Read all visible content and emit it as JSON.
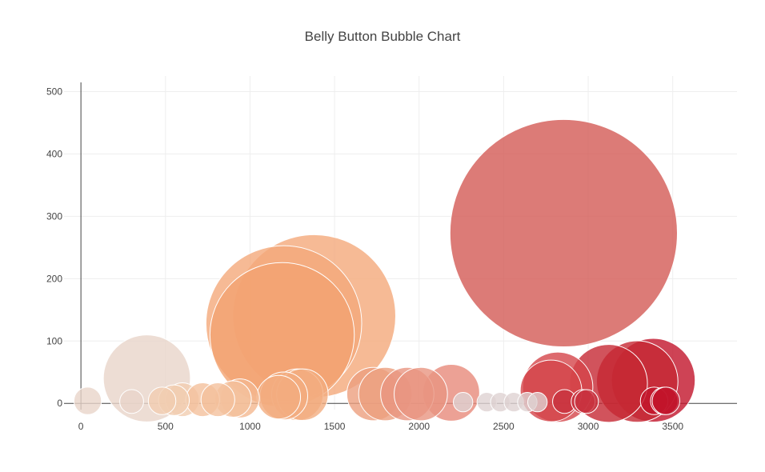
{
  "chart_data": {
    "type": "scatter",
    "title": "Belly Button Bubble Chart",
    "xlabel": "",
    "ylabel": "",
    "xlim": [
      -100,
      3880
    ],
    "ylim": [
      -10,
      525
    ],
    "x_ticks": [
      0,
      500,
      1000,
      1500,
      2000,
      2500,
      3000,
      3500
    ],
    "y_ticks": [
      0,
      100,
      200,
      300,
      400,
      500
    ],
    "grid": true,
    "legend": "none",
    "size_unit_px_per_sqrt": 8.6,
    "points": [
      {
        "x": 40,
        "y": 4,
        "size": 4,
        "color": "#e8d5c9"
      },
      {
        "x": 300,
        "y": 3,
        "size": 3,
        "color": "#e8d5c9"
      },
      {
        "x": 390,
        "y": 40,
        "size": 40,
        "color": "#e8d5c9"
      },
      {
        "x": 480,
        "y": 4,
        "size": 4,
        "color": "#f1cdb0"
      },
      {
        "x": 550,
        "y": 5,
        "size": 5,
        "color": "#f1cdb0"
      },
      {
        "x": 600,
        "y": 6,
        "size": 6,
        "color": "#f1cdb0"
      },
      {
        "x": 720,
        "y": 6,
        "size": 6,
        "color": "#f4c09c"
      },
      {
        "x": 810,
        "y": 6,
        "size": 6,
        "color": "#f4c09c"
      },
      {
        "x": 900,
        "y": 7,
        "size": 7,
        "color": "#f4c09c"
      },
      {
        "x": 940,
        "y": 8,
        "size": 8,
        "color": "#f4b890"
      },
      {
        "x": 1170,
        "y": 10,
        "size": 10,
        "color": "#f2ad7f"
      },
      {
        "x": 1200,
        "y": 12,
        "size": 12,
        "color": "#f2ad7f"
      },
      {
        "x": 1280,
        "y": 14,
        "size": 14,
        "color": "#f2ad7f"
      },
      {
        "x": 1310,
        "y": 14,
        "size": 14,
        "color": "#f2ad7f"
      },
      {
        "x": 1380,
        "y": 140,
        "size": 140,
        "color": "#f4a97a"
      },
      {
        "x": 1200,
        "y": 128,
        "size": 128,
        "color": "#f4a97a"
      },
      {
        "x": 1190,
        "y": 110,
        "size": 110,
        "color": "#f2a370"
      },
      {
        "x": 1730,
        "y": 15,
        "size": 15,
        "color": "#ec9f7e"
      },
      {
        "x": 1800,
        "y": 15,
        "size": 15,
        "color": "#ec9f7e"
      },
      {
        "x": 1930,
        "y": 15,
        "size": 15,
        "color": "#e99581"
      },
      {
        "x": 2010,
        "y": 15,
        "size": 15,
        "color": "#e99581"
      },
      {
        "x": 2190,
        "y": 17,
        "size": 17,
        "color": "#e7897a"
      },
      {
        "x": 2260,
        "y": 2,
        "size": 2,
        "color": "#dfd2d2"
      },
      {
        "x": 2400,
        "y": 2,
        "size": 2,
        "color": "#dfd2d2"
      },
      {
        "x": 2480,
        "y": 2,
        "size": 2,
        "color": "#dfd2d2"
      },
      {
        "x": 2560,
        "y": 2,
        "size": 2,
        "color": "#dfd2d2"
      },
      {
        "x": 2640,
        "y": 2,
        "size": 2,
        "color": "#dfd2d2"
      },
      {
        "x": 2700,
        "y": 2,
        "size": 2,
        "color": "#dfd2d2"
      },
      {
        "x": 2780,
        "y": 20,
        "size": 20,
        "color": "#d4454a"
      },
      {
        "x": 2820,
        "y": 26,
        "size": 26,
        "color": "#d4454a"
      },
      {
        "x": 2855,
        "y": 273,
        "size": 273,
        "color": "#d35a55"
      },
      {
        "x": 2860,
        "y": 3,
        "size": 3,
        "color": "#c8323e"
      },
      {
        "x": 2970,
        "y": 3,
        "size": 3,
        "color": "#c8323e"
      },
      {
        "x": 2990,
        "y": 3,
        "size": 3,
        "color": "#c8323e"
      },
      {
        "x": 3120,
        "y": 32,
        "size": 32,
        "color": "#c62833"
      },
      {
        "x": 3290,
        "y": 35,
        "size": 35,
        "color": "#c62833"
      },
      {
        "x": 3385,
        "y": 37,
        "size": 37,
        "color": "#c2142a"
      },
      {
        "x": 3390,
        "y": 4,
        "size": 4,
        "color": "#c2142a"
      },
      {
        "x": 3450,
        "y": 4,
        "size": 4,
        "color": "#c2142a"
      },
      {
        "x": 3460,
        "y": 4,
        "size": 4,
        "color": "#c2142a"
      }
    ]
  }
}
